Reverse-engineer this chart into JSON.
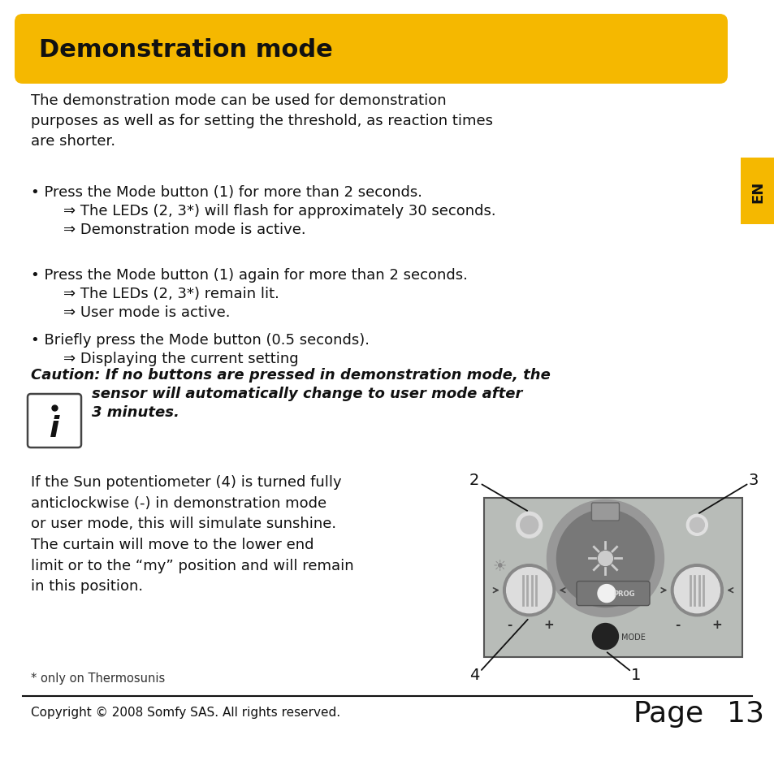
{
  "bg_color": "#ffffff",
  "title_bg_color": "#F5B800",
  "title_text": "Demonstration mode",
  "title_text_color": "#111111",
  "en_tab_color": "#F5B800",
  "en_tab_text": "EN",
  "body_text_color": "#111111",
  "intro": "The demonstration mode can be used for demonstration\npurposes as well as for setting the threshold, as reaction times\nare shorter.",
  "bullet1_main": "• Press the Mode button (1) for more than 2 seconds.",
  "bullet1_sub1": "    ⇒ The LEDs (2, 3*) will flash for approximately 30 seconds.",
  "bullet1_sub2": "    ⇒ Demonstration mode is active.",
  "bullet2_main": "• Press the Mode button (1) again for more than 2 seconds.",
  "bullet2_sub1": "    ⇒ The LEDs (2, 3*) remain lit.",
  "bullet2_sub2": "    ⇒ User mode is active.",
  "bullet3_main": "• Briefly press the Mode button (0.5 seconds).",
  "bullet3_sub1": "    ⇒ Displaying the current setting",
  "caution_line1": "Caution: If no buttons are pressed in demonstration mode, the",
  "caution_line2": "            sensor will automatically change to user mode after",
  "caution_line3": "            3 minutes.",
  "bottom_text": "If the Sun potentiometer (4) is turned fully\nanticlockwise (-) in demonstration mode\nor user mode, this will simulate sunshine.\nThe curtain will move to the lower end\nlimit or to the “my” position and will remain\nin this position.",
  "footnote": "* only on Thermosunis",
  "copyright": "Copyright © 2008 Somfy SAS. All rights reserved.",
  "page_label": "Page",
  "page_number": "13"
}
